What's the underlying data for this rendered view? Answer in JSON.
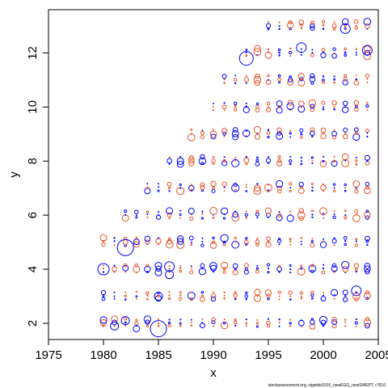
{
  "chart_data": {
    "type": "scatter",
    "title": "",
    "xlabel": "x",
    "ylabel": "y",
    "xlim": [
      1975,
      2005
    ],
    "ylim": [
      1.4,
      13.6
    ],
    "xticks": [
      1975,
      1980,
      1985,
      1990,
      1995,
      2000,
      2005
    ],
    "yticks": [
      2,
      4,
      6,
      8,
      10,
      12
    ],
    "grid": false,
    "legend": "none",
    "footer": "stockassessment.org, sigwide2016_newEGG_newSWEPT, r7616",
    "colors": {
      "positive": "#0000ff",
      "negative": "#e8542a"
    },
    "marker": "bubble sized by |residual|; blue open circles = positive, red open circles = negative",
    "points": [
      {
        "x": 1982,
        "y": 4.8,
        "size": 1.0,
        "sign": "pos"
      },
      {
        "x": 1980,
        "y": 4.0,
        "size": 0.7,
        "sign": "pos"
      },
      {
        "x": 1985,
        "y": 1.8,
        "size": 1.0,
        "sign": "pos"
      },
      {
        "x": 1993,
        "y": 11.8,
        "size": 0.85,
        "sign": "pos"
      },
      {
        "x": 2002,
        "y": 12.9,
        "size": 0.6,
        "sign": "pos"
      },
      {
        "x": 2004,
        "y": 12.1,
        "size": 0.6,
        "sign": "pos"
      },
      {
        "x": 1998,
        "y": 12.2,
        "size": 0.6,
        "sign": "pos"
      },
      {
        "x": 2003,
        "y": 3.2,
        "size": 0.6,
        "sign": "pos"
      },
      {
        "x": 1986,
        "y": 4.1,
        "size": 0.6,
        "sign": "pos"
      },
      {
        "x": 1986,
        "y": 3.8,
        "size": 0.5,
        "sign": "pos"
      },
      {
        "x": 1985,
        "y": 3.0,
        "size": 0.5,
        "sign": "pos"
      },
      {
        "x": 1981,
        "y": 1.9,
        "size": 0.5,
        "sign": "pos"
      },
      {
        "x": 1982,
        "y": 2.1,
        "size": 0.5,
        "sign": "pos"
      },
      {
        "x": 1983,
        "y": 1.8,
        "size": 0.4,
        "sign": "pos"
      }
    ]
  }
}
